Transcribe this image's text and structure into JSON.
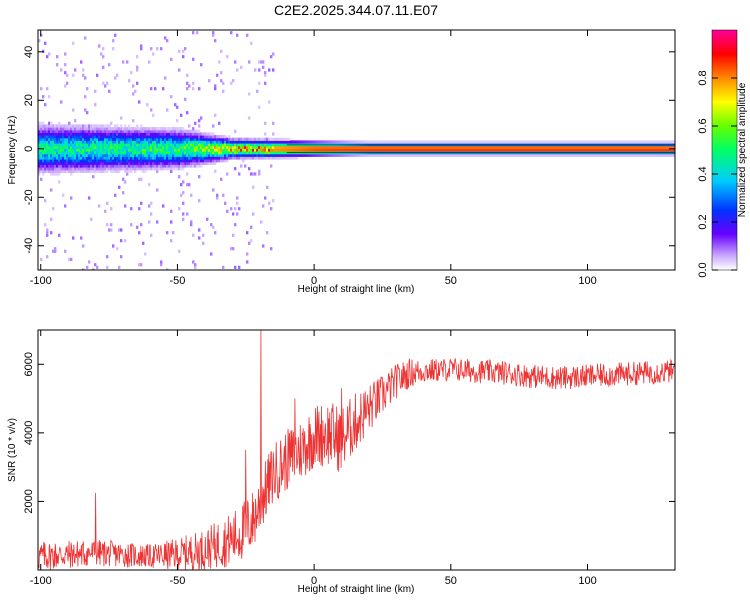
{
  "figure_title": "C2E2.2025.344.07.11.E07",
  "chart_data": [
    {
      "type": "heatmap",
      "title": "",
      "xlabel": "Height of straight line (km)",
      "ylabel": "Frequency (Hz)",
      "xlim": [
        -101,
        132
      ],
      "ylim": [
        -50,
        49
      ],
      "xticks": [
        -100,
        -50,
        0,
        50,
        100
      ],
      "yticks": [
        -40,
        -20,
        0,
        20,
        40
      ],
      "colorbar": {
        "label": "Normalized spectral amplitude",
        "range": [
          0,
          1
        ],
        "ticks": [
          0.0,
          0.2,
          0.4,
          0.6,
          0.8
        ],
        "tick_labels": [
          "0.0",
          "0.2",
          "0.4",
          "0.6",
          "0.8"
        ],
        "colormap": "rainbow (white → violet → blue → cyan → green → yellow → red → magenta)"
      },
      "band": {
        "description": "Narrow spectral band centred near 0 Hz; broad and noisy below ~-30 km, sharp and saturated above ~0 km",
        "center_freq_hz": 0,
        "halfwidth_hz": [
          [
            -100,
            5
          ],
          [
            -50,
            4
          ],
          [
            -30,
            2
          ],
          [
            0,
            1.5
          ],
          [
            20,
            1.2
          ],
          [
            132,
            1.2
          ]
        ],
        "peak_amplitude": [
          [
            -100,
            0.45
          ],
          [
            -50,
            0.5
          ],
          [
            -30,
            0.75
          ],
          [
            -10,
            0.85
          ],
          [
            0,
            0.9
          ],
          [
            20,
            0.95
          ],
          [
            132,
            0.95
          ]
        ]
      },
      "grid": false
    },
    {
      "type": "line",
      "title": "",
      "xlabel": "Height of straight line (km)",
      "ylabel": "SNR (10 * v/v)",
      "xlim": [
        -101,
        132
      ],
      "ylim": [
        0,
        7000
      ],
      "xticks": [
        -100,
        -50,
        0,
        50,
        100
      ],
      "yticks": [
        2000,
        4000,
        6000
      ],
      "color": "#ee3333",
      "series": [
        {
          "name": "",
          "trend": {
            "x": [
              -101,
              -90,
              -80,
              -70,
              -60,
              -50,
              -40,
              -30,
              -25,
              -22,
              -19,
              -15,
              -10,
              -5,
              0,
              5,
              10,
              15,
              20,
              25,
              30,
              35,
              40,
              50,
              60,
              70,
              80,
              90,
              100,
              110,
              120,
              132
            ],
            "y": [
              400,
              450,
              500,
              450,
              400,
              450,
              600,
              900,
              1200,
              1500,
              2100,
              2800,
              3200,
              3500,
              3900,
              4000,
              3800,
              4300,
              4700,
              5100,
              5500,
              5750,
              5800,
              5850,
              5800,
              5750,
              5650,
              5600,
              5650,
              5700,
              5750,
              5800
            ]
          },
          "noise_amplitude": {
            "x": [
              -101,
              -60,
              -40,
              -25,
              -10,
              10,
              25,
              40,
              132
            ],
            "y": [
              450,
              350,
              600,
              900,
              900,
              1000,
              600,
              350,
              350
            ]
          },
          "spikes": [
            {
              "x": -80,
              "y": 2250
            },
            {
              "x": -25,
              "y": 3500
            },
            {
              "x": -19.5,
              "y": 7000
            },
            {
              "x": -7,
              "y": 5000
            },
            {
              "x": 10,
              "y": 5300
            }
          ]
        }
      ],
      "grid": false
    }
  ]
}
